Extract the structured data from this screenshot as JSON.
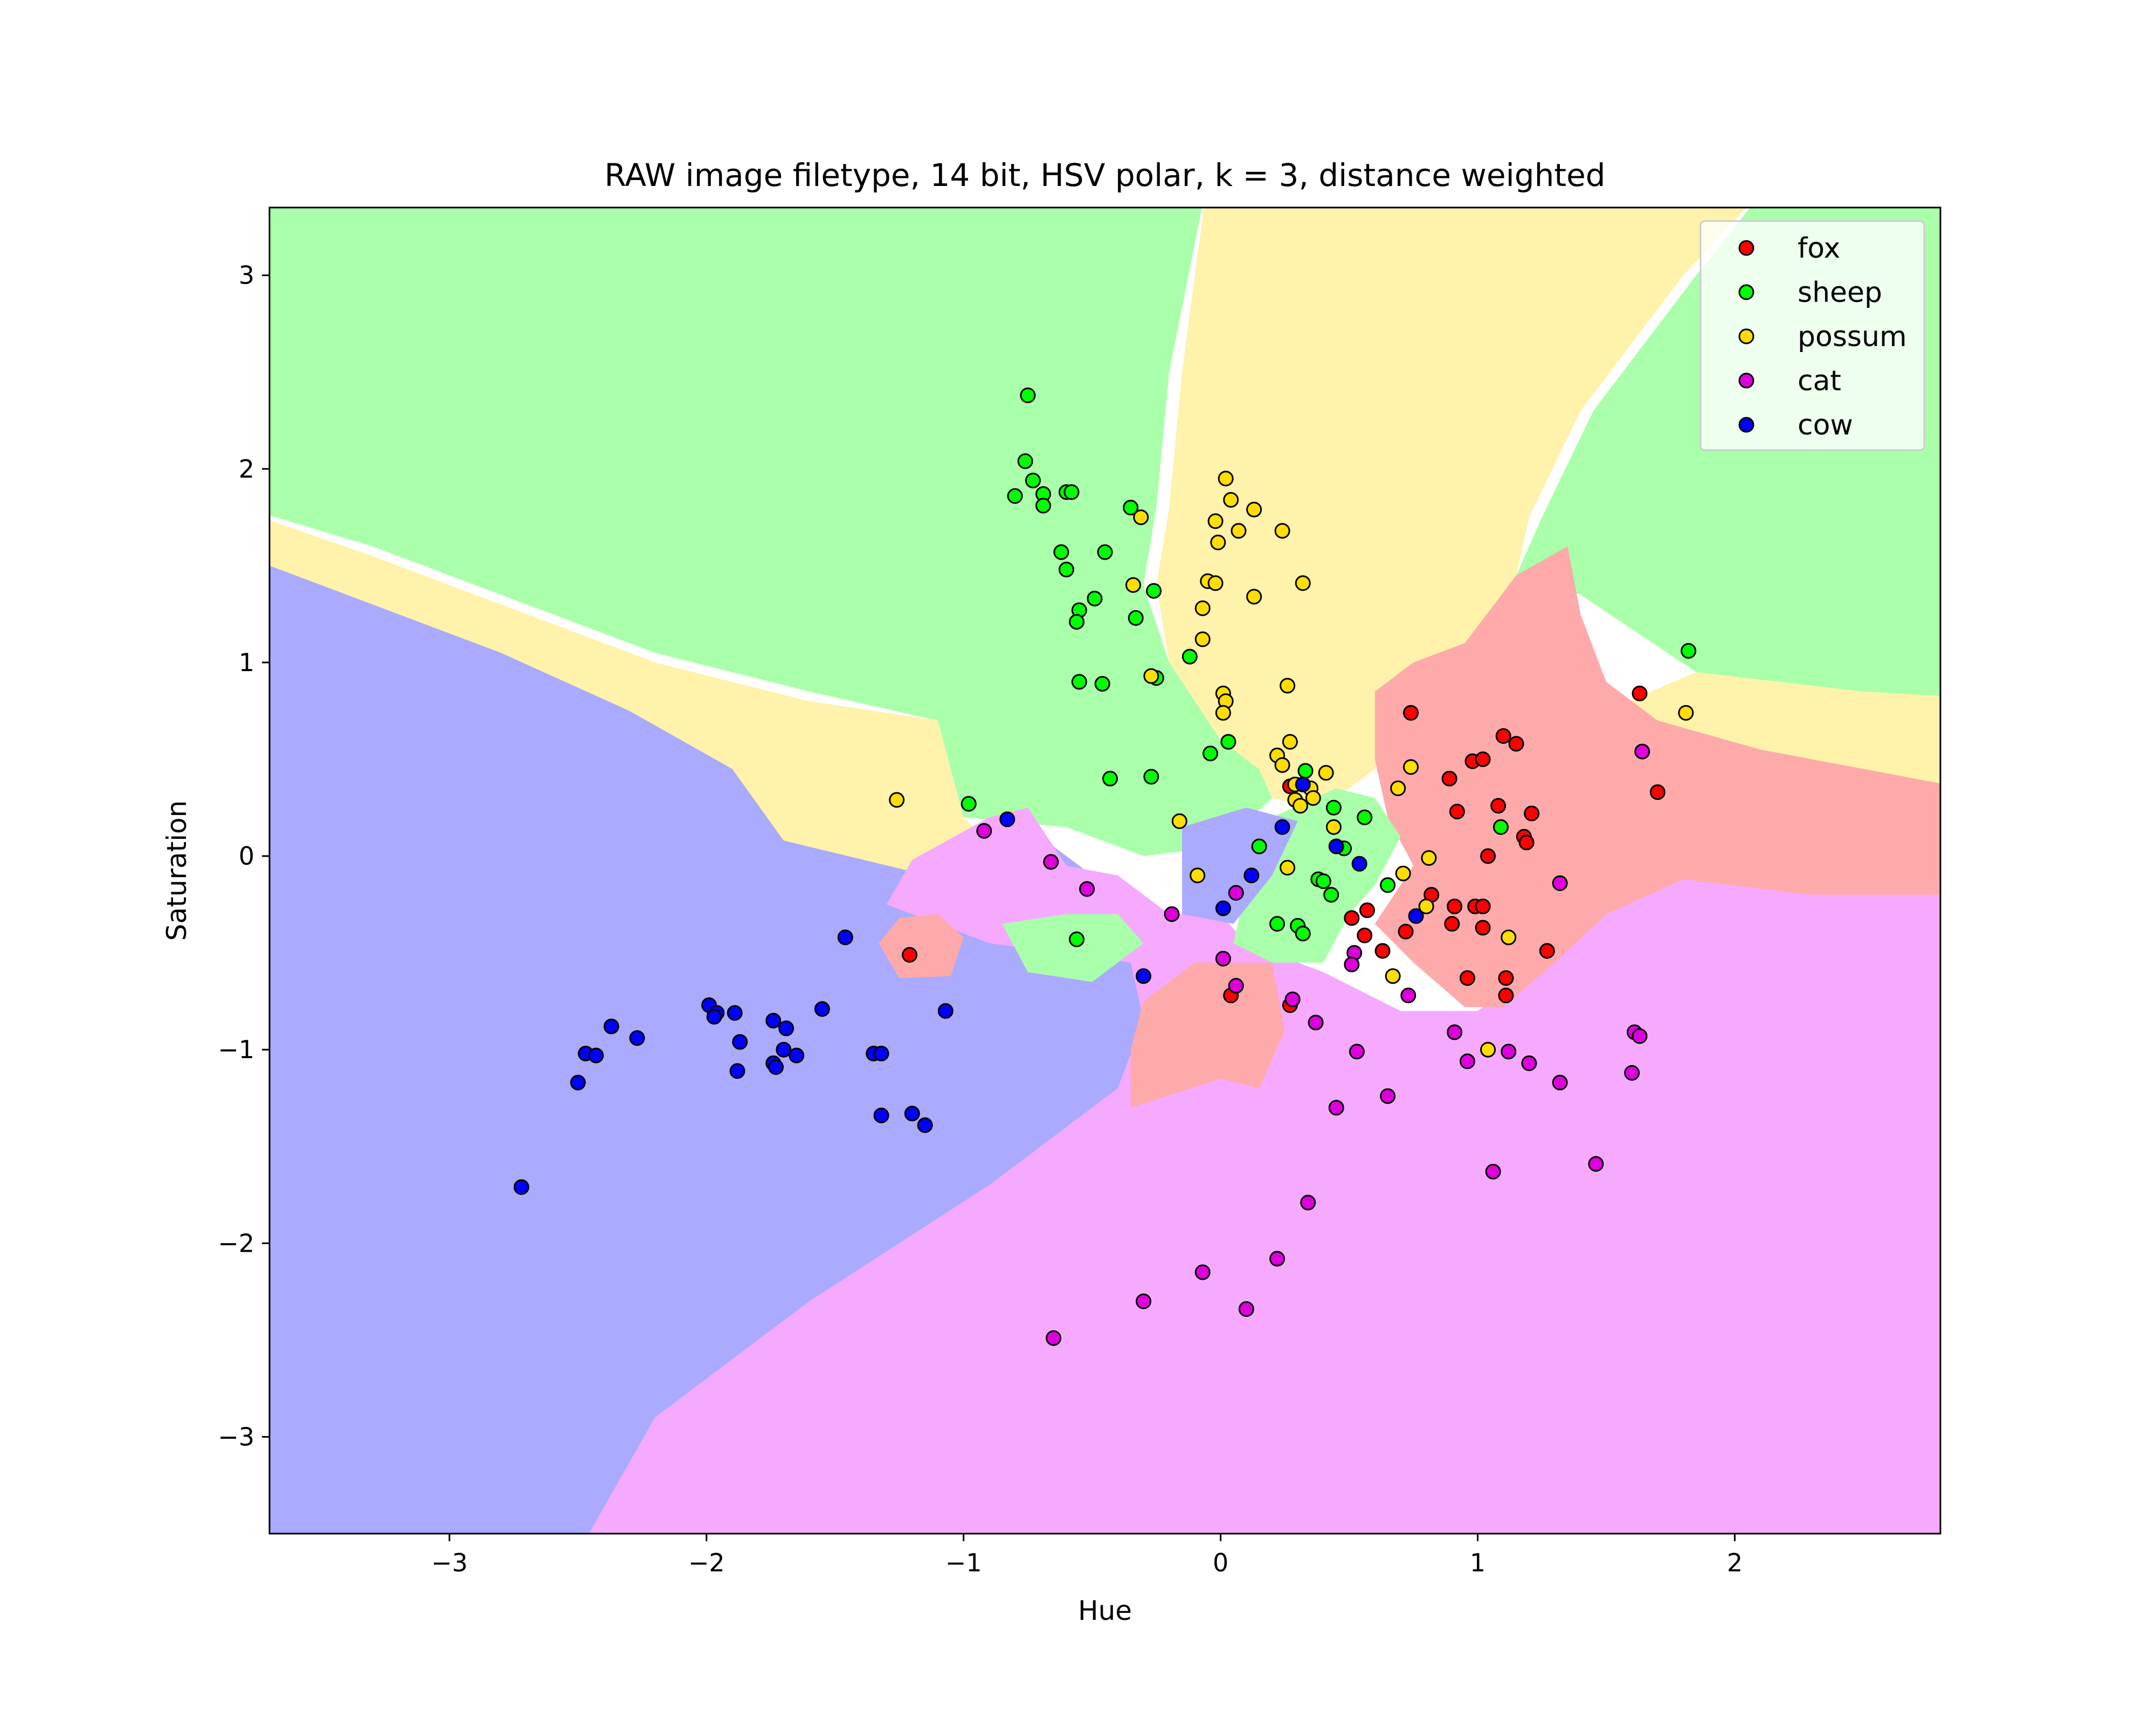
{
  "chart_data": {
    "type": "scatter",
    "title": "RAW image filetype, 14 bit, HSV polar, k = 3, distance weighted",
    "xlabel": "Hue",
    "ylabel": "Saturation",
    "xlim": [
      -3.7,
      2.8
    ],
    "ylim": [
      -3.5,
      3.35
    ],
    "xticks": [
      -3,
      -2,
      -1,
      0,
      1,
      2
    ],
    "yticks": [
      -3,
      -2,
      -1,
      0,
      1,
      2,
      3
    ],
    "xtick_labels": [
      "−3",
      "−2",
      "−1",
      "0",
      "1",
      "2"
    ],
    "ytick_labels": [
      "−3",
      "−2",
      "−1",
      "0",
      "1",
      "2",
      "3"
    ],
    "grid": false,
    "legend_position": "top-right",
    "region_colors": {
      "fox": "#ffaaaa",
      "sheep": "#aaffaa",
      "possum": "#fff2aa",
      "cat": "#f5aaff",
      "cow": "#aaaaff"
    },
    "series": [
      {
        "name": "fox",
        "color": "#ff0000",
        "points": [
          [
            -1.21,
            -0.51
          ],
          [
            0.27,
            0.36
          ],
          [
            0.74,
            0.74
          ],
          [
            0.89,
            0.4
          ],
          [
            0.98,
            0.49
          ],
          [
            1.02,
            0.5
          ],
          [
            1.1,
            0.62
          ],
          [
            1.15,
            0.58
          ],
          [
            1.63,
            0.84
          ],
          [
            1.7,
            0.33
          ],
          [
            0.92,
            0.23
          ],
          [
            1.08,
            0.26
          ],
          [
            1.21,
            0.22
          ],
          [
            1.18,
            0.1
          ],
          [
            1.19,
            0.07
          ],
          [
            1.04,
            0.0
          ],
          [
            0.82,
            -0.2
          ],
          [
            0.51,
            -0.32
          ],
          [
            0.57,
            -0.28
          ],
          [
            0.56,
            -0.41
          ],
          [
            0.63,
            -0.49
          ],
          [
            0.72,
            -0.39
          ],
          [
            0.91,
            -0.26
          ],
          [
            0.9,
            -0.35
          ],
          [
            0.99,
            -0.26
          ],
          [
            1.02,
            -0.26
          ],
          [
            1.02,
            -0.37
          ],
          [
            0.96,
            -0.63
          ],
          [
            1.11,
            -0.63
          ],
          [
            1.11,
            -0.72
          ],
          [
            1.27,
            -0.49
          ],
          [
            0.04,
            -0.72
          ],
          [
            0.27,
            -0.77
          ]
        ]
      },
      {
        "name": "sheep",
        "color": "#00ff00",
        "points": [
          [
            -0.75,
            2.38
          ],
          [
            -0.76,
            2.04
          ],
          [
            -0.73,
            1.94
          ],
          [
            -0.69,
            1.87
          ],
          [
            -0.8,
            1.86
          ],
          [
            -0.6,
            1.88
          ],
          [
            -0.58,
            1.88
          ],
          [
            -0.69,
            1.81
          ],
          [
            -0.35,
            1.8
          ],
          [
            -0.62,
            1.57
          ],
          [
            -0.6,
            1.48
          ],
          [
            -0.45,
            1.57
          ],
          [
            -0.55,
            1.27
          ],
          [
            -0.56,
            1.21
          ],
          [
            -0.49,
            1.33
          ],
          [
            -0.33,
            1.23
          ],
          [
            -0.26,
            1.37
          ],
          [
            -0.55,
            0.9
          ],
          [
            -0.46,
            0.89
          ],
          [
            -0.25,
            0.92
          ],
          [
            -0.12,
            1.03
          ],
          [
            -0.04,
            0.53
          ],
          [
            0.03,
            0.59
          ],
          [
            -0.27,
            0.41
          ],
          [
            -0.43,
            0.4
          ],
          [
            -0.98,
            0.27
          ],
          [
            0.33,
            0.44
          ],
          [
            0.44,
            0.25
          ],
          [
            0.56,
            0.2
          ],
          [
            0.15,
            0.05
          ],
          [
            0.48,
            0.04
          ],
          [
            0.38,
            -0.12
          ],
          [
            0.4,
            -0.13
          ],
          [
            0.43,
            -0.2
          ],
          [
            0.22,
            -0.35
          ],
          [
            0.3,
            -0.36
          ],
          [
            0.32,
            -0.4
          ],
          [
            0.65,
            -0.15
          ],
          [
            1.09,
            0.15
          ],
          [
            1.82,
            1.06
          ],
          [
            -0.56,
            -0.43
          ]
        ]
      },
      {
        "name": "possum",
        "color": "#ffdd00",
        "points": [
          [
            0.02,
            1.95
          ],
          [
            0.04,
            1.84
          ],
          [
            -0.31,
            1.75
          ],
          [
            -0.02,
            1.73
          ],
          [
            0.13,
            1.79
          ],
          [
            0.07,
            1.68
          ],
          [
            0.24,
            1.68
          ],
          [
            -0.01,
            1.62
          ],
          [
            -0.34,
            1.4
          ],
          [
            -0.05,
            1.42
          ],
          [
            -0.02,
            1.41
          ],
          [
            0.13,
            1.34
          ],
          [
            0.32,
            1.41
          ],
          [
            -0.07,
            1.28
          ],
          [
            -0.07,
            1.12
          ],
          [
            -0.27,
            0.93
          ],
          [
            0.01,
            0.84
          ],
          [
            0.02,
            0.8
          ],
          [
            0.01,
            0.74
          ],
          [
            0.26,
            0.88
          ],
          [
            0.27,
            0.59
          ],
          [
            0.22,
            0.52
          ],
          [
            0.24,
            0.47
          ],
          [
            0.41,
            0.43
          ],
          [
            0.29,
            0.37
          ],
          [
            0.29,
            0.29
          ],
          [
            0.31,
            0.26
          ],
          [
            0.35,
            0.35
          ],
          [
            0.36,
            0.3
          ],
          [
            0.44,
            0.15
          ],
          [
            0.74,
            0.46
          ],
          [
            0.69,
            0.35
          ],
          [
            -1.26,
            0.29
          ],
          [
            -0.16,
            0.18
          ],
          [
            -0.09,
            -0.1
          ],
          [
            0.26,
            -0.06
          ],
          [
            0.71,
            -0.09
          ],
          [
            0.81,
            -0.01
          ],
          [
            0.8,
            -0.26
          ],
          [
            0.67,
            -0.62
          ],
          [
            1.12,
            -0.42
          ],
          [
            1.04,
            -1.0
          ],
          [
            1.81,
            0.74
          ]
        ]
      },
      {
        "name": "cat",
        "color": "#dd00dd",
        "points": [
          [
            1.64,
            0.54
          ],
          [
            -0.92,
            0.13
          ],
          [
            -0.66,
            -0.03
          ],
          [
            -0.52,
            -0.17
          ],
          [
            -0.19,
            -0.3
          ],
          [
            0.06,
            -0.19
          ],
          [
            0.01,
            -0.53
          ],
          [
            0.06,
            -0.67
          ],
          [
            0.28,
            -0.74
          ],
          [
            0.37,
            -0.86
          ],
          [
            0.52,
            -0.5
          ],
          [
            0.51,
            -0.56
          ],
          [
            0.73,
            -0.72
          ],
          [
            0.91,
            -0.91
          ],
          [
            0.96,
            -1.06
          ],
          [
            1.12,
            -1.01
          ],
          [
            1.2,
            -1.07
          ],
          [
            1.06,
            -1.63
          ],
          [
            1.32,
            -0.14
          ],
          [
            1.32,
            -1.17
          ],
          [
            1.46,
            -1.59
          ],
          [
            1.6,
            -1.12
          ],
          [
            1.61,
            -0.91
          ],
          [
            1.63,
            -0.93
          ],
          [
            0.53,
            -1.01
          ],
          [
            0.45,
            -1.3
          ],
          [
            0.65,
            -1.24
          ],
          [
            0.34,
            -1.79
          ],
          [
            0.22,
            -2.08
          ],
          [
            -0.07,
            -2.15
          ],
          [
            -0.3,
            -2.3
          ],
          [
            0.1,
            -2.34
          ],
          [
            -0.65,
            -2.49
          ]
        ]
      },
      {
        "name": "cow",
        "color": "#0000ff",
        "points": [
          [
            -0.83,
            0.19
          ],
          [
            0.24,
            0.15
          ],
          [
            0.32,
            0.37
          ],
          [
            0.45,
            0.05
          ],
          [
            0.54,
            -0.04
          ],
          [
            0.12,
            -0.1
          ],
          [
            0.01,
            -0.27
          ],
          [
            0.76,
            -0.31
          ],
          [
            -0.3,
            -0.62
          ],
          [
            -1.46,
            -0.42
          ],
          [
            -1.07,
            -0.8
          ],
          [
            -1.55,
            -0.79
          ],
          [
            -1.99,
            -0.77
          ],
          [
            -1.96,
            -0.81
          ],
          [
            -1.89,
            -0.81
          ],
          [
            -1.97,
            -0.83
          ],
          [
            -2.37,
            -0.88
          ],
          [
            -2.27,
            -0.94
          ],
          [
            -1.74,
            -0.85
          ],
          [
            -1.69,
            -0.89
          ],
          [
            -1.87,
            -0.96
          ],
          [
            -1.7,
            -1.0
          ],
          [
            -1.65,
            -1.03
          ],
          [
            -1.74,
            -1.07
          ],
          [
            -1.73,
            -1.09
          ],
          [
            -1.88,
            -1.11
          ],
          [
            -2.47,
            -1.02
          ],
          [
            -2.43,
            -1.03
          ],
          [
            -2.5,
            -1.17
          ],
          [
            -1.35,
            -1.02
          ],
          [
            -1.32,
            -1.02
          ],
          [
            -1.32,
            -1.34
          ],
          [
            -1.2,
            -1.33
          ],
          [
            -1.15,
            -1.39
          ],
          [
            -2.72,
            -1.71
          ]
        ]
      }
    ]
  }
}
